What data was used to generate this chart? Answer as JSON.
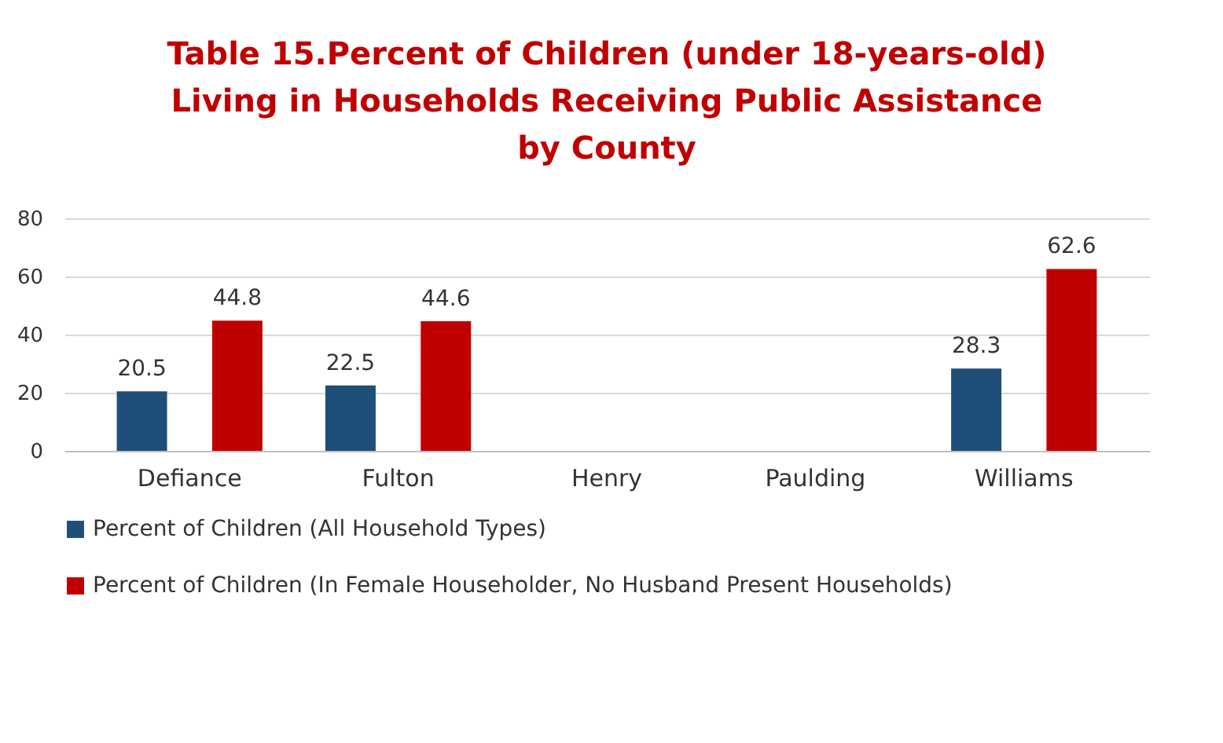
{
  "chart_data": {
    "type": "bar",
    "title": "Table 15.Percent of Children (under 18-years-old)\nLiving in Households Receiving Public Assistance\nby County",
    "categories": [
      "Defiance",
      "Fulton",
      "Henry",
      "Paulding",
      "Williams"
    ],
    "series": [
      {
        "name": "Percent of Children (All Household Types)",
        "color": "#1f4e79",
        "values": [
          20.5,
          22.5,
          null,
          null,
          28.3
        ]
      },
      {
        "name": "Percent of Children (In Female Householder, No Husband Present Households)",
        "color": "#c00000",
        "values": [
          44.8,
          44.6,
          null,
          null,
          62.6
        ]
      }
    ],
    "ylim": [
      0,
      80
    ],
    "yticks": [
      0,
      20,
      40,
      60,
      80
    ],
    "grid": "y",
    "legend": "bottom",
    "data_labels": true
  }
}
